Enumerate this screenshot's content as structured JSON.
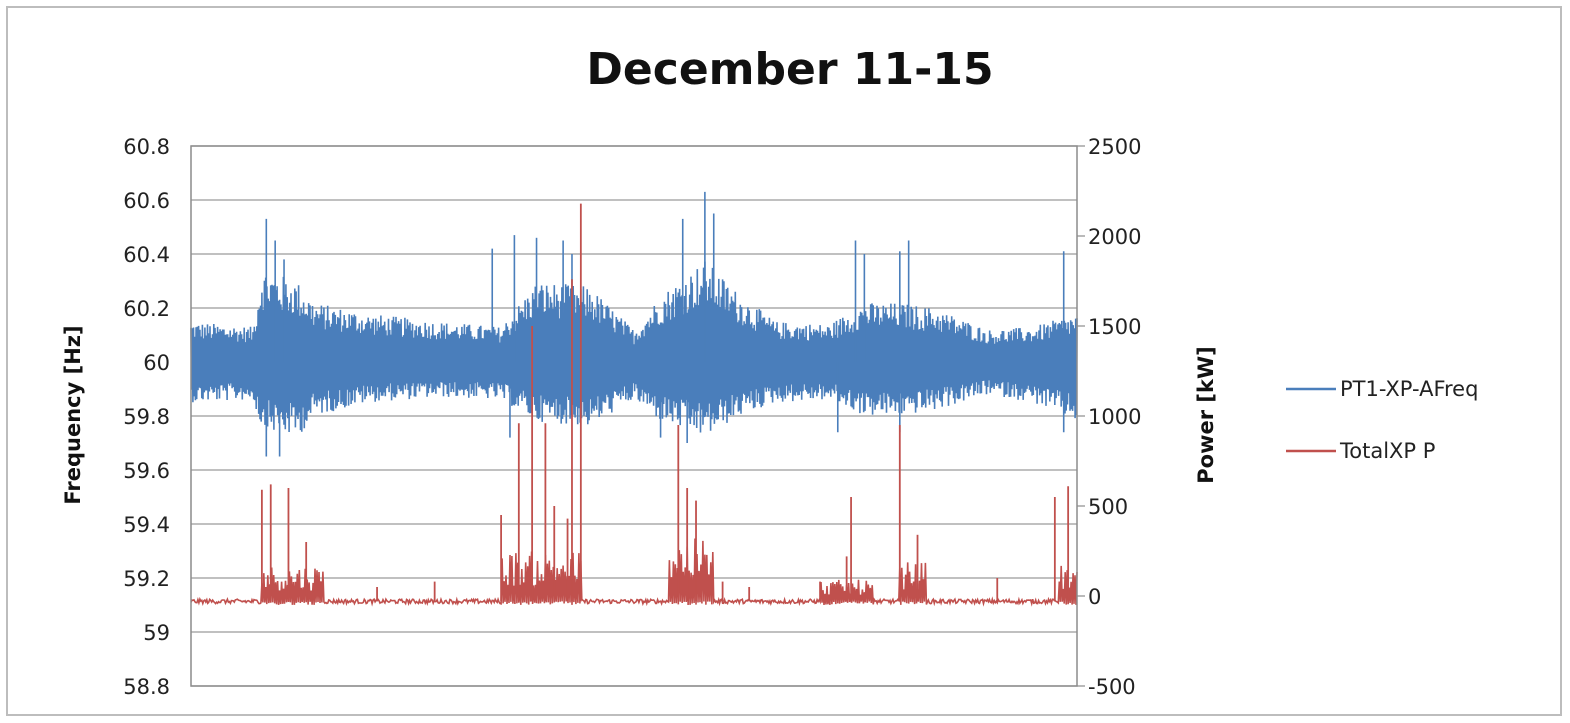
{
  "chart_data": {
    "type": "line",
    "title": "December 11-15",
    "ylabel_left": "Frequency [Hz]",
    "ylabel_right": "Power [kW]",
    "ylim_left": [
      58.8,
      60.8
    ],
    "ylim_right": [
      -500,
      2500
    ],
    "yticks_left": [
      "60.8",
      "60.6",
      "60.4",
      "60.2",
      "60",
      "59.8",
      "59.6",
      "59.4",
      "59.2",
      "59",
      "58.8"
    ],
    "yticks_right": [
      "2500",
      "2000",
      "1500",
      "1000",
      "500",
      "0",
      "-500"
    ],
    "grid": true,
    "legend_position": "right",
    "series": [
      {
        "name": "PT1-XP-AFreq",
        "axis": "left",
        "color": "#4a7ebb",
        "baseline": 60.0,
        "envelope_x": [
          0,
          0.07,
          0.08,
          0.12,
          0.14,
          0.2,
          0.28,
          0.35,
          0.39,
          0.45,
          0.5,
          0.53,
          0.58,
          0.62,
          0.66,
          0.72,
          0.76,
          0.8,
          0.84,
          0.9,
          0.95,
          1.0
        ],
        "envelope_high": [
          60.15,
          60.13,
          60.35,
          60.3,
          60.22,
          60.18,
          60.15,
          60.13,
          60.3,
          60.28,
          60.12,
          60.25,
          60.38,
          60.25,
          60.15,
          60.14,
          60.22,
          60.22,
          60.2,
          60.12,
          60.13,
          60.18
        ],
        "envelope_low": [
          59.85,
          59.86,
          59.75,
          59.72,
          59.8,
          59.85,
          59.87,
          59.86,
          59.78,
          59.76,
          59.86,
          59.78,
          59.72,
          59.8,
          59.85,
          59.86,
          59.8,
          59.8,
          59.82,
          59.88,
          59.85,
          59.78
        ],
        "spikes_high": [
          [
            0.085,
            60.53
          ],
          [
            0.095,
            60.45
          ],
          [
            0.105,
            60.38
          ],
          [
            0.34,
            60.42
          ],
          [
            0.365,
            60.47
          ],
          [
            0.39,
            60.46
          ],
          [
            0.42,
            60.45
          ],
          [
            0.43,
            60.4
          ],
          [
            0.555,
            60.53
          ],
          [
            0.58,
            60.63
          ],
          [
            0.59,
            60.55
          ],
          [
            0.75,
            60.45
          ],
          [
            0.76,
            60.4
          ],
          [
            0.8,
            60.41
          ],
          [
            0.81,
            60.45
          ],
          [
            0.985,
            60.41
          ]
        ],
        "spikes_low": [
          [
            0.085,
            59.65
          ],
          [
            0.1,
            59.65
          ],
          [
            0.36,
            59.72
          ],
          [
            0.53,
            59.72
          ],
          [
            0.56,
            59.7
          ],
          [
            0.73,
            59.74
          ],
          [
            0.8,
            59.74
          ],
          [
            0.985,
            59.74
          ]
        ]
      },
      {
        "name": "TotalXP P",
        "axis": "right",
        "color": "#c0504d",
        "baseline": -30,
        "active_ranges": [
          [
            0.08,
            0.15,
            200
          ],
          [
            0.35,
            0.44,
            280
          ],
          [
            0.54,
            0.59,
            350
          ],
          [
            0.71,
            0.77,
            120
          ],
          [
            0.8,
            0.83,
            220
          ],
          [
            0.98,
            1.0,
            200
          ]
        ],
        "spikes": [
          [
            0.08,
            590
          ],
          [
            0.09,
            620
          ],
          [
            0.11,
            600
          ],
          [
            0.13,
            300
          ],
          [
            0.21,
            50
          ],
          [
            0.275,
            80
          ],
          [
            0.35,
            450
          ],
          [
            0.37,
            960
          ],
          [
            0.385,
            1500
          ],
          [
            0.4,
            960
          ],
          [
            0.41,
            500
          ],
          [
            0.425,
            430
          ],
          [
            0.43,
            1760
          ],
          [
            0.44,
            2180
          ],
          [
            0.55,
            950
          ],
          [
            0.56,
            600
          ],
          [
            0.57,
            530
          ],
          [
            0.6,
            80
          ],
          [
            0.63,
            50
          ],
          [
            0.71,
            80
          ],
          [
            0.74,
            220
          ],
          [
            0.745,
            550
          ],
          [
            0.8,
            950
          ],
          [
            0.82,
            340
          ],
          [
            0.91,
            100
          ],
          [
            0.975,
            550
          ],
          [
            0.99,
            610
          ]
        ]
      }
    ]
  },
  "legend": {
    "items": [
      {
        "label": "PT1-XP-AFreq",
        "color": "#4a7ebb"
      },
      {
        "label": "TotalXP P",
        "color": "#c0504d"
      }
    ]
  }
}
